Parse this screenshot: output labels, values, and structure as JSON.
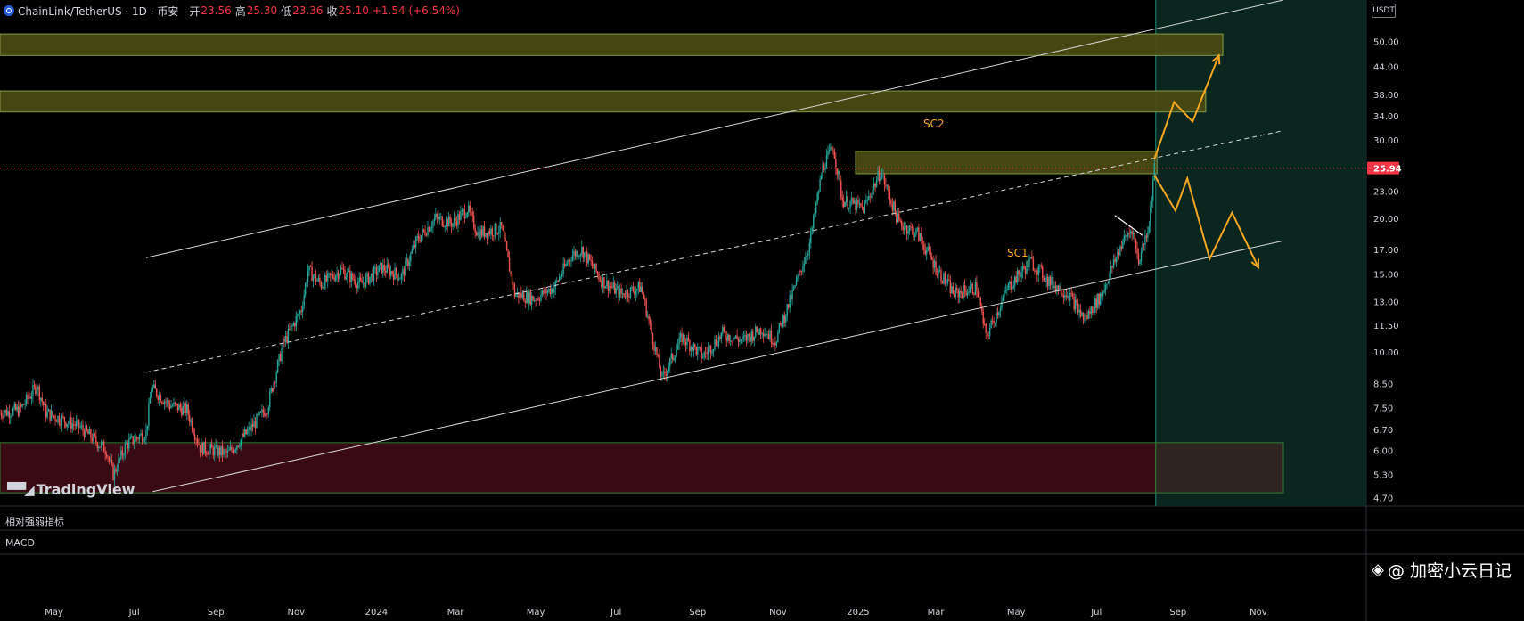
{
  "header": {
    "symbol": "ChainLink/TetherUS · 1D · 币安",
    "open_label": "开",
    "open_value": "23.56",
    "high_label": "高",
    "high_value": "25.30",
    "low_label": "低",
    "low_value": "23.36",
    "close_label": "收",
    "close_value": "25.10",
    "change": "+1.54 (+6.54%)"
  },
  "quote_unit": "USDT",
  "current_price_label": "25.94",
  "panels": {
    "rsi": "相对强弱指标",
    "macd": "MACD"
  },
  "watermark": "TradingView",
  "brand": "@ 加密小云日记",
  "annotations": {
    "sc1": "SC1",
    "sc2": "SC2"
  },
  "colors": {
    "up": "#26a69a",
    "down": "#ef5350",
    "resistance_zone": "#4a4a14",
    "support_zone": "#3a0a14",
    "projection": "#f5a623",
    "forecast_bg": "#0b2a22",
    "price_line": "#f23645"
  },
  "chart_data": {
    "type": "candlestick",
    "scale": "log",
    "y_ticks": [
      50,
      44,
      38,
      34,
      30,
      26,
      23,
      20,
      17,
      15,
      13,
      11.5,
      10,
      8.5,
      7.5,
      6.7,
      6,
      5.3,
      4.7
    ],
    "y_tick_labels": [
      "50.00",
      "44.00",
      "38.00",
      "34.00",
      "30.00",
      "",
      "23.00",
      "20.00",
      "17.00",
      "15.00",
      "13.00",
      "11.50",
      "10.00",
      "8.50",
      "7.50",
      "6.70",
      "6.00",
      "5.30",
      "4.70"
    ],
    "ylim": [
      4.5,
      62
    ],
    "x_ticks": [
      {
        "label": "May",
        "date": "2023-05-01"
      },
      {
        "label": "Jul",
        "date": "2023-07-01"
      },
      {
        "label": "Sep",
        "date": "2023-09-01"
      },
      {
        "label": "Nov",
        "date": "2023-11-01"
      },
      {
        "label": "2024",
        "date": "2024-01-01"
      },
      {
        "label": "Mar",
        "date": "2024-03-01"
      },
      {
        "label": "May",
        "date": "2024-05-01"
      },
      {
        "label": "Jul",
        "date": "2024-07-01"
      },
      {
        "label": "Sep",
        "date": "2024-09-01"
      },
      {
        "label": "Nov",
        "date": "2024-11-01"
      },
      {
        "label": "2025",
        "date": "2025-01-01"
      },
      {
        "label": "Mar",
        "date": "2025-03-01"
      },
      {
        "label": "May",
        "date": "2025-05-01"
      },
      {
        "label": "Jul",
        "date": "2025-07-01"
      },
      {
        "label": "Sep",
        "date": "2025-09-01"
      },
      {
        "label": "Nov",
        "date": "2025-11-01"
      }
    ],
    "last_price": 25.94,
    "price_path": [
      [
        "2023-03-21",
        7.3
      ],
      [
        "2023-04-05",
        7.4
      ],
      [
        "2023-04-18",
        8.4
      ],
      [
        "2023-04-25",
        7.3
      ],
      [
        "2023-05-20",
        6.8
      ],
      [
        "2023-06-10",
        6.0
      ],
      [
        "2023-06-15",
        5.3
      ],
      [
        "2023-06-25",
        6.2
      ],
      [
        "2023-07-10",
        6.6
      ],
      [
        "2023-07-14",
        8.3
      ],
      [
        "2023-07-28",
        7.6
      ],
      [
        "2023-08-10",
        7.4
      ],
      [
        "2023-08-20",
        6.1
      ],
      [
        "2023-09-10",
        5.9
      ],
      [
        "2023-09-25",
        6.6
      ],
      [
        "2023-10-10",
        7.5
      ],
      [
        "2023-10-22",
        10.4
      ],
      [
        "2023-11-05",
        12.5
      ],
      [
        "2023-11-10",
        15.3
      ],
      [
        "2023-11-20",
        14.2
      ],
      [
        "2023-12-05",
        15.3
      ],
      [
        "2023-12-20",
        14.2
      ],
      [
        "2024-01-05",
        15.5
      ],
      [
        "2024-01-20",
        14.8
      ],
      [
        "2024-02-01",
        17.9
      ],
      [
        "2024-02-15",
        20.0
      ],
      [
        "2024-02-28",
        19.5
      ],
      [
        "2024-03-10",
        21.0
      ],
      [
        "2024-03-18",
        18.5
      ],
      [
        "2024-04-05",
        19.0
      ],
      [
        "2024-04-15",
        13.5
      ],
      [
        "2024-04-30",
        13.2
      ],
      [
        "2024-05-15",
        14.0
      ],
      [
        "2024-05-28",
        16.5
      ],
      [
        "2024-06-05",
        17.0
      ],
      [
        "2024-06-20",
        14.5
      ],
      [
        "2024-07-05",
        13.5
      ],
      [
        "2024-07-20",
        14.0
      ],
      [
        "2024-08-05",
        8.7
      ],
      [
        "2024-08-20",
        10.8
      ],
      [
        "2024-09-05",
        9.8
      ],
      [
        "2024-09-20",
        11.0
      ],
      [
        "2024-10-05",
        10.6
      ],
      [
        "2024-10-20",
        11.3
      ],
      [
        "2024-10-30",
        10.6
      ],
      [
        "2024-11-12",
        13.5
      ],
      [
        "2024-11-25",
        17.5
      ],
      [
        "2024-12-05",
        26.0
      ],
      [
        "2024-12-13",
        29.0
      ],
      [
        "2024-12-20",
        22.0
      ],
      [
        "2025-01-05",
        21.0
      ],
      [
        "2025-01-18",
        25.5
      ],
      [
        "2025-02-01",
        19.5
      ],
      [
        "2025-02-15",
        18.5
      ],
      [
        "2025-03-01",
        15.5
      ],
      [
        "2025-03-15",
        13.5
      ],
      [
        "2025-04-01",
        14.0
      ],
      [
        "2025-04-08",
        10.8
      ],
      [
        "2025-04-25",
        14.0
      ],
      [
        "2025-05-12",
        16.0
      ],
      [
        "2025-05-25",
        14.5
      ],
      [
        "2025-06-10",
        13.5
      ],
      [
        "2025-06-22",
        11.8
      ],
      [
        "2025-07-05",
        13.5
      ],
      [
        "2025-07-20",
        17.5
      ],
      [
        "2025-07-28",
        19.0
      ],
      [
        "2025-08-02",
        16.0
      ],
      [
        "2025-08-10",
        19.5
      ],
      [
        "2025-08-14",
        25.94
      ]
    ],
    "channel": {
      "upper": [
        [
          "2023-07-10",
          16.3
        ],
        [
          "2025-11-20",
          62.0
        ]
      ],
      "middle": [
        [
          "2023-07-10",
          9.0
        ],
        [
          "2025-11-20",
          31.5
        ]
      ],
      "lower": [
        [
          "2023-07-15",
          4.85
        ],
        [
          "2025-11-20",
          17.8
        ]
      ]
    },
    "local_trend": [
      [
        "2025-07-15",
        20.3
      ],
      [
        "2025-08-05",
        18.3
      ]
    ],
    "zones": {
      "resistance": [
        {
          "start": "2023-03-01",
          "end": "2025-10-05",
          "top": 52,
          "bottom": 46.5
        },
        {
          "start": "2023-03-01",
          "end": "2025-09-22",
          "top": 38.7,
          "bottom": 34.7
        },
        {
          "start": "2024-12-30",
          "end": "2025-08-16",
          "top": 28.3,
          "bottom": 25.2
        }
      ],
      "support": {
        "start": "2023-03-01",
        "end": "2025-11-20",
        "top": 6.25,
        "bottom": 4.82
      }
    },
    "forecast_start": "2025-08-15",
    "projections": {
      "sc2": [
        [
          "2025-08-14",
          27.2
        ],
        [
          "2025-08-29",
          36.5
        ],
        [
          "2025-09-12",
          33.0
        ],
        [
          "2025-10-02",
          46.5
        ]
      ],
      "sc1": [
        [
          "2025-08-14",
          25.0
        ],
        [
          "2025-08-30",
          20.8
        ],
        [
          "2025-09-08",
          24.6
        ],
        [
          "2025-09-25",
          16.2
        ],
        [
          "2025-10-12",
          20.6
        ],
        [
          "2025-11-01",
          15.5
        ]
      ]
    }
  }
}
